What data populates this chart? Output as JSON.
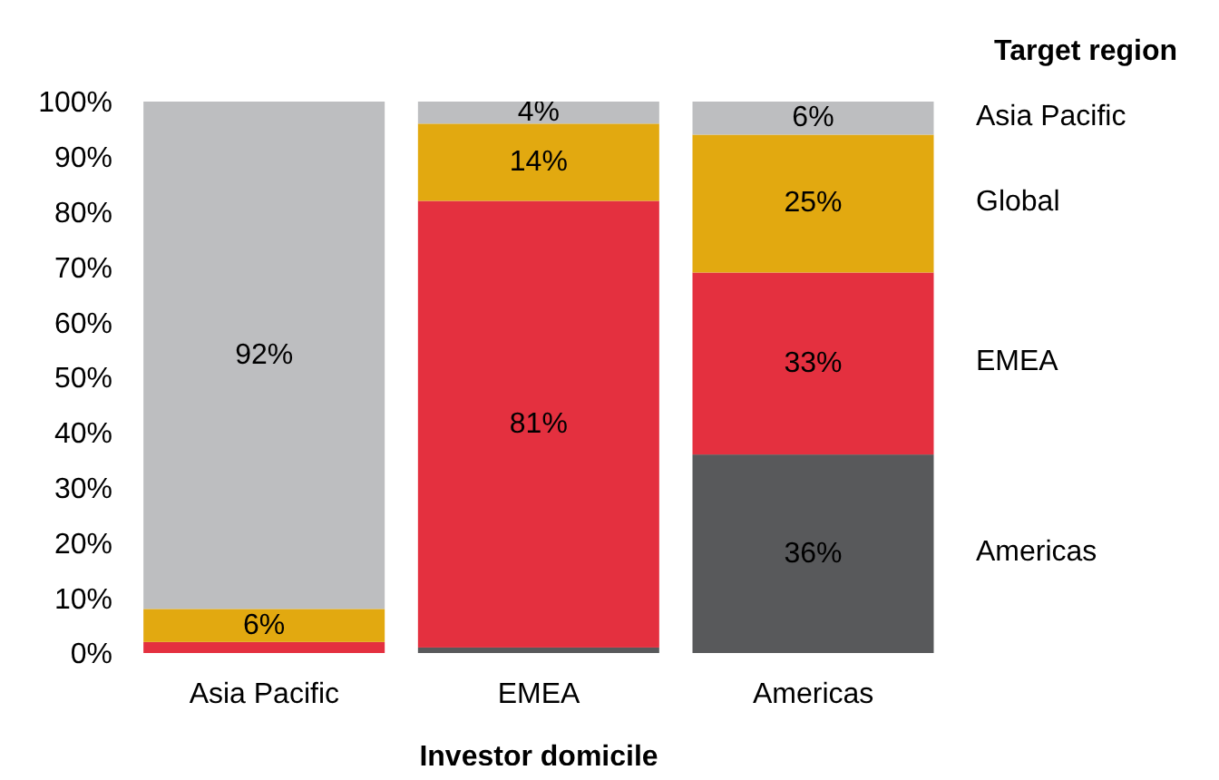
{
  "chart_data": {
    "type": "bar",
    "stacked": true,
    "xlabel": "Investor domicile",
    "legend_title": "Target region",
    "legend": "right",
    "categories": [
      "Asia Pacific",
      "EMEA",
      "Americas"
    ],
    "series": [
      {
        "name": "Americas",
        "color": "#58595b",
        "values": [
          0,
          1,
          36
        ],
        "value_labels": [
          null,
          null,
          "36%"
        ]
      },
      {
        "name": "EMEA",
        "color": "#e4303f",
        "values": [
          2,
          81,
          33
        ],
        "value_labels": [
          null,
          "81%",
          "33%"
        ]
      },
      {
        "name": "Global",
        "color": "#e2a910",
        "values": [
          6,
          14,
          25
        ],
        "value_labels": [
          "6%",
          "14%",
          "25%"
        ]
      },
      {
        "name": "Asia Pacific",
        "color": "#bdbec0",
        "values": [
          92,
          4,
          6
        ],
        "value_labels": [
          "92%",
          "4%",
          "6%"
        ]
      }
    ],
    "ylim": [
      0,
      100
    ],
    "yticks": [
      {
        "value": 0,
        "label": "0%"
      },
      {
        "value": 10,
        "label": "10%"
      },
      {
        "value": 20,
        "label": "20%"
      },
      {
        "value": 30,
        "label": "30%"
      },
      {
        "value": 40,
        "label": "40%"
      },
      {
        "value": 50,
        "label": "50%"
      },
      {
        "value": 60,
        "label": "60%"
      },
      {
        "value": 70,
        "label": "70%"
      },
      {
        "value": 80,
        "label": "80%"
      },
      {
        "value": 90,
        "label": "90%"
      },
      {
        "value": 100,
        "label": "100%"
      }
    ],
    "grid": false
  }
}
